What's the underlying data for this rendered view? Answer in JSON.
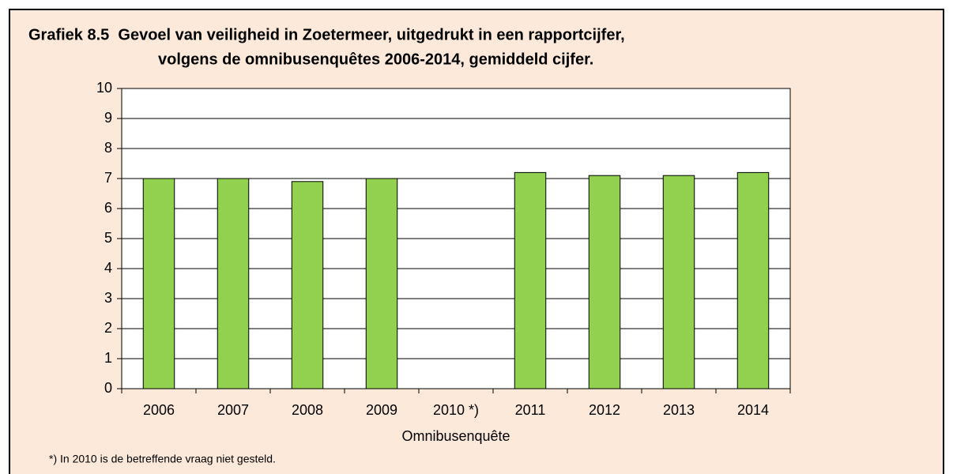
{
  "chart_data": {
    "type": "bar",
    "title": [
      "Grafiek 8.5  Gevoel van veiligheid in Zoetermeer, uitgedrukt in een rapportcijfer,",
      "volgens de omnibusenquêtes 2006-2014, gemiddeld cijfer."
    ],
    "categories": [
      "2006",
      "2007",
      "2008",
      "2009",
      "2010 *)",
      "2011",
      "2012",
      "2013",
      "2014"
    ],
    "values": [
      7.0,
      7.0,
      6.9,
      7.0,
      null,
      7.2,
      7.1,
      7.1,
      7.2
    ],
    "color": "#92d050",
    "x_label": "Omnibusenquête",
    "ylim": [
      0,
      10
    ],
    "yticks": [
      0,
      1,
      2,
      3,
      4,
      5,
      6,
      7,
      8,
      9,
      10
    ],
    "grid": true,
    "note": "*) In 2010 is de betreffende vraag niet gesteld."
  }
}
